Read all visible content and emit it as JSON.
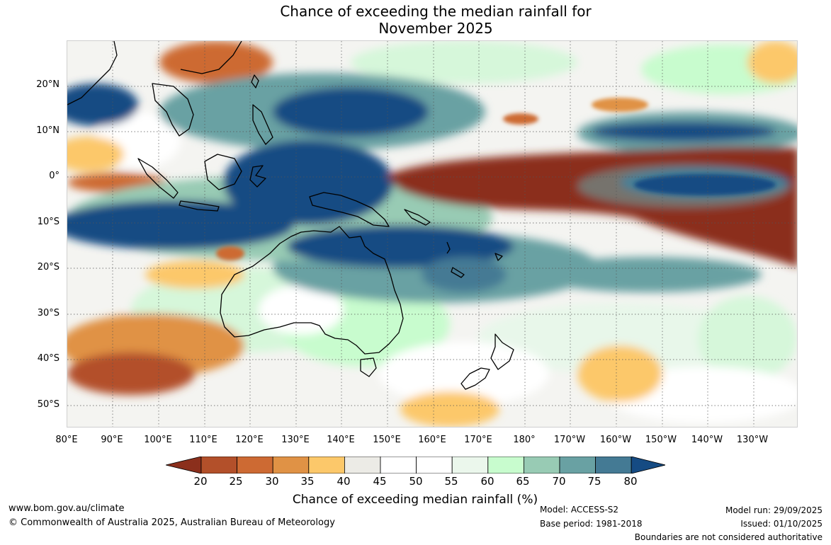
{
  "title_line1": "Chance of exceeding the median rainfall for",
  "title_line2": "November 2025",
  "latitude_labels": [
    "20°N",
    "10°N",
    "0°",
    "10°S",
    "20°S",
    "30°S",
    "40°S",
    "50°S"
  ],
  "longitude_labels": [
    "80°E",
    "90°E",
    "100°E",
    "110°E",
    "120°E",
    "130°E",
    "140°E",
    "150°E",
    "160°E",
    "170°E",
    "180°",
    "170°W",
    "160°W",
    "150°W",
    "140°W",
    "130°W"
  ],
  "colorbar": {
    "ticks": [
      "20",
      "25",
      "30",
      "35",
      "40",
      "45",
      "50",
      "55",
      "60",
      "65",
      "70",
      "75",
      "80"
    ],
    "colors": [
      "#8b2f1c",
      "#b3502a",
      "#cd6a33",
      "#e09245",
      "#fcc86a",
      "#ecebe6",
      "#ffffff",
      "#ffffff",
      "#ebf7ec",
      "#c8fcce",
      "#98cbb4",
      "#69a1a3",
      "#447a94",
      "#154b83"
    ],
    "title": "Chance of exceeding median rainfall (%)"
  },
  "footer": {
    "website": "www.bom.gov.au/climate",
    "copyright": "© Commonwealth of Australia 2025, Australian Bureau of Meteorology",
    "model": "Model: ACCESS-S2",
    "base_period": "Base period: 1981-2018",
    "model_run": "Model run: 29/09/2025",
    "issued": "Issued: 01/10/2025",
    "disclaimer": "Boundaries are not considered authoritative"
  }
}
